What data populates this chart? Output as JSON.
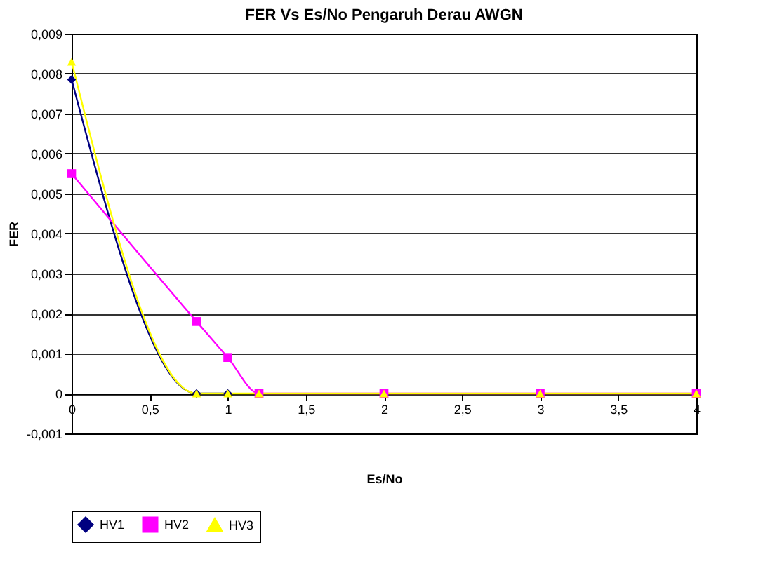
{
  "chart_data": {
    "type": "line",
    "title": "FER Vs Es/No Pengaruh Derau AWGN",
    "xlabel": "Es/No",
    "ylabel": "FER",
    "x": [
      0,
      0.8,
      1,
      1.2,
      2,
      3,
      4
    ],
    "series": [
      {
        "name": "HV1",
        "color": "#000080",
        "marker": "diamond",
        "values": [
          0.00785,
          0,
          0,
          null,
          null,
          null,
          null
        ]
      },
      {
        "name": "HV2",
        "color": "#ff00ff",
        "marker": "square",
        "values": [
          0.0055,
          0.0018,
          0.0009,
          0,
          0,
          0,
          0
        ]
      },
      {
        "name": "HV3",
        "color": "#ffff00",
        "marker": "triangle",
        "values": [
          0.0083,
          0,
          0,
          0,
          0,
          0,
          0
        ]
      }
    ],
    "xlim": [
      0,
      4
    ],
    "xticks": [
      0,
      {
        "value": 0.5,
        "label": "0,5"
      },
      1,
      {
        "value": 1.5,
        "label": "1,5"
      },
      2,
      {
        "value": 2.5,
        "label": "2,5"
      },
      3,
      {
        "value": 3.5,
        "label": "3,5"
      },
      4
    ],
    "ylim": [
      -0.001,
      0.009
    ],
    "yticks": [
      {
        "value": -0.001,
        "label": "-0,001"
      },
      0,
      {
        "value": 0.001,
        "label": "0,001"
      },
      {
        "value": 0.002,
        "label": "0,002"
      },
      {
        "value": 0.003,
        "label": "0,003"
      },
      {
        "value": 0.004,
        "label": "0,004"
      },
      {
        "value": 0.005,
        "label": "0,005"
      },
      {
        "value": 0.006,
        "label": "0,006"
      },
      {
        "value": 0.007,
        "label": "0,007"
      },
      {
        "value": 0.008,
        "label": "0,008"
      },
      {
        "value": 0.009,
        "label": "0,009"
      }
    ],
    "grid": "y",
    "legend": "bottom",
    "line_style": "solid"
  }
}
